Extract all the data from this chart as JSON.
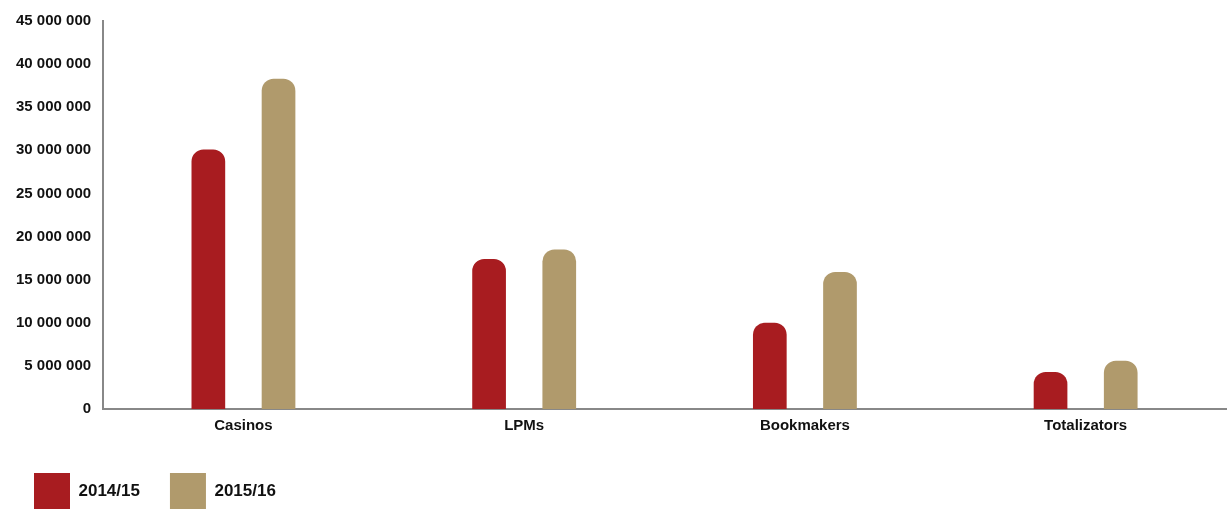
{
  "chart_data": {
    "type": "bar",
    "categories": [
      "Casinos",
      "LPMs",
      "Bookmakers",
      "Totalizators"
    ],
    "series": [
      {
        "name": "2014/15",
        "color": "#a81c20",
        "values": [
          30100000,
          17400000,
          10000000,
          4300000
        ]
      },
      {
        "name": "2015/16",
        "color": "#b09a6c",
        "values": [
          38300000,
          18500000,
          15900000,
          5600000
        ]
      }
    ],
    "ylim": [
      0,
      45000000
    ],
    "yticks": [
      {
        "value": 0,
        "label": "0"
      },
      {
        "value": 5000000,
        "label": "5 000 000"
      },
      {
        "value": 10000000,
        "label": "10 000 000"
      },
      {
        "value": 15000000,
        "label": "15 000 000"
      },
      {
        "value": 20000000,
        "label": "20 000 000"
      },
      {
        "value": 25000000,
        "label": "25 000 000"
      },
      {
        "value": 30000000,
        "label": "30 000 000"
      },
      {
        "value": 35000000,
        "label": "35 000 000"
      },
      {
        "value": 40000000,
        "label": "40 000 000"
      },
      {
        "value": 45000000,
        "label": "45 000 000"
      }
    ],
    "grid": false,
    "legend": "bottom left"
  }
}
